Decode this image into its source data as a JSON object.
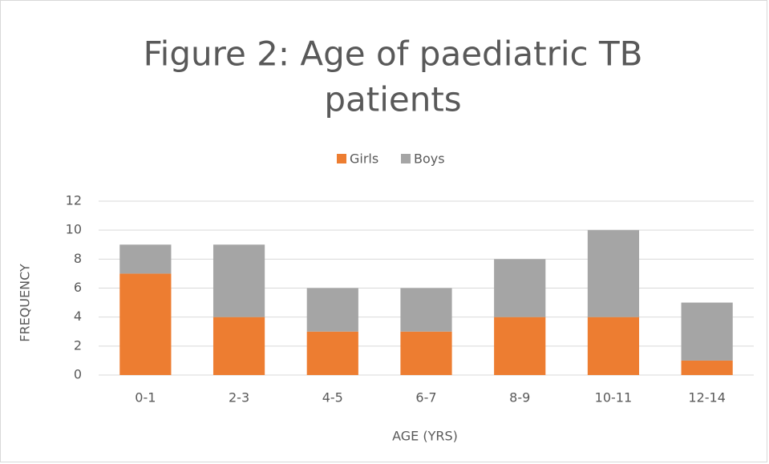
{
  "chart_data": {
    "type": "stacked_bar",
    "title": "Figure 2: Age of paediatric TB patients",
    "x_label": "AGE (YRS)",
    "y_label": "FREQUENCY",
    "categories": [
      "0-1",
      "2-3",
      "4-5",
      "6-7",
      "8-9",
      "10-11",
      "12-14"
    ],
    "series": [
      {
        "name": "Girls",
        "color": "#ed7d31",
        "values": [
          7,
          4,
          3,
          3,
          4,
          4,
          1
        ]
      },
      {
        "name": "Boys",
        "color": "#a5a5a5",
        "values": [
          2,
          5,
          3,
          3,
          4,
          6,
          4
        ]
      }
    ],
    "ylim": [
      0,
      12
    ],
    "yticks": [
      0,
      2,
      4,
      6,
      8,
      10,
      12
    ],
    "grid": true,
    "legend": "top"
  }
}
